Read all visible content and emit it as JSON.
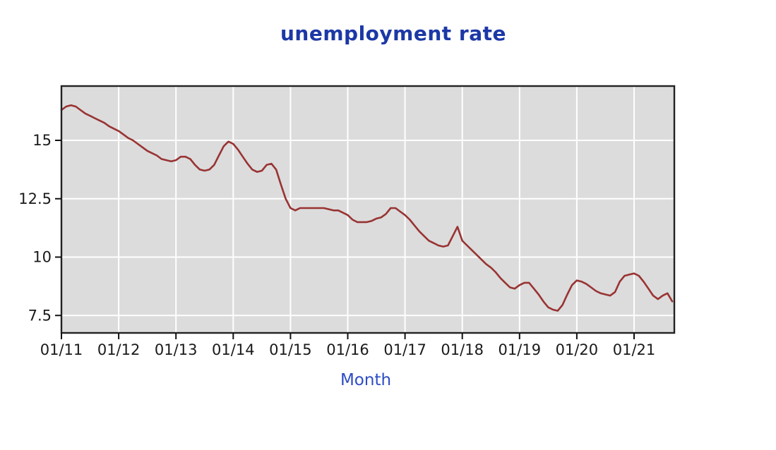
{
  "title": "unemployment rate",
  "xlabel": "Month",
  "colors": {
    "title": "#1c38a6",
    "axis_label": "#2d4cc5",
    "tick_label": "#1a1a1a",
    "line": "#993333",
    "plot_background": "#dcdcdc",
    "grid": "#ffffff",
    "plot_border": "#222222"
  },
  "chart_data": {
    "type": "line",
    "title": "unemployment rate",
    "xlabel": "Month",
    "ylabel": "",
    "x_start": "01/2011",
    "x_interval": "monthly",
    "x_tick_labels": [
      "01/11",
      "01/12",
      "01/13",
      "01/14",
      "01/15",
      "01/16",
      "01/17",
      "01/18",
      "01/19",
      "01/20",
      "01/21"
    ],
    "y_ticks": [
      15,
      12.5,
      10,
      7.5
    ],
    "y_tick_labels": [
      "15",
      "12.5",
      "10",
      "7.5"
    ],
    "ylim": [
      6.8,
      17.3
    ],
    "grid": true,
    "legend": false,
    "series": [
      {
        "name": "unemployment rate",
        "values": [
          16.3,
          16.45,
          16.5,
          16.45,
          16.3,
          16.15,
          16.05,
          15.95,
          15.85,
          15.75,
          15.6,
          15.5,
          15.4,
          15.25,
          15.1,
          15.0,
          14.85,
          14.7,
          14.55,
          14.45,
          14.35,
          14.2,
          14.15,
          14.1,
          14.15,
          14.3,
          14.3,
          14.2,
          13.95,
          13.75,
          13.7,
          13.75,
          13.95,
          14.35,
          14.75,
          14.95,
          14.85,
          14.6,
          14.3,
          14.0,
          13.75,
          13.65,
          13.7,
          13.95,
          14.0,
          13.75,
          13.1,
          12.5,
          12.1,
          12.0,
          12.1,
          12.1,
          12.1,
          12.1,
          12.1,
          12.1,
          12.05,
          12.0,
          12.0,
          11.9,
          11.8,
          11.6,
          11.5,
          11.5,
          11.5,
          11.55,
          11.65,
          11.7,
          11.85,
          12.1,
          12.1,
          11.95,
          11.8,
          11.6,
          11.35,
          11.1,
          10.9,
          10.7,
          10.6,
          10.5,
          10.45,
          10.5,
          10.9,
          11.3,
          10.7,
          10.5,
          10.3,
          10.1,
          9.9,
          9.7,
          9.55,
          9.35,
          9.1,
          8.9,
          8.7,
          8.65,
          8.8,
          8.9,
          8.9,
          8.65,
          8.4,
          8.1,
          7.85,
          7.75,
          7.7,
          7.95,
          8.4,
          8.8,
          9.0,
          8.95,
          8.85,
          8.7,
          8.55,
          8.45,
          8.4,
          8.35,
          8.5,
          8.95,
          9.2,
          9.25,
          9.3,
          9.2,
          8.95,
          8.65,
          8.35,
          8.2,
          8.35,
          8.45,
          8.1
        ]
      }
    ]
  }
}
